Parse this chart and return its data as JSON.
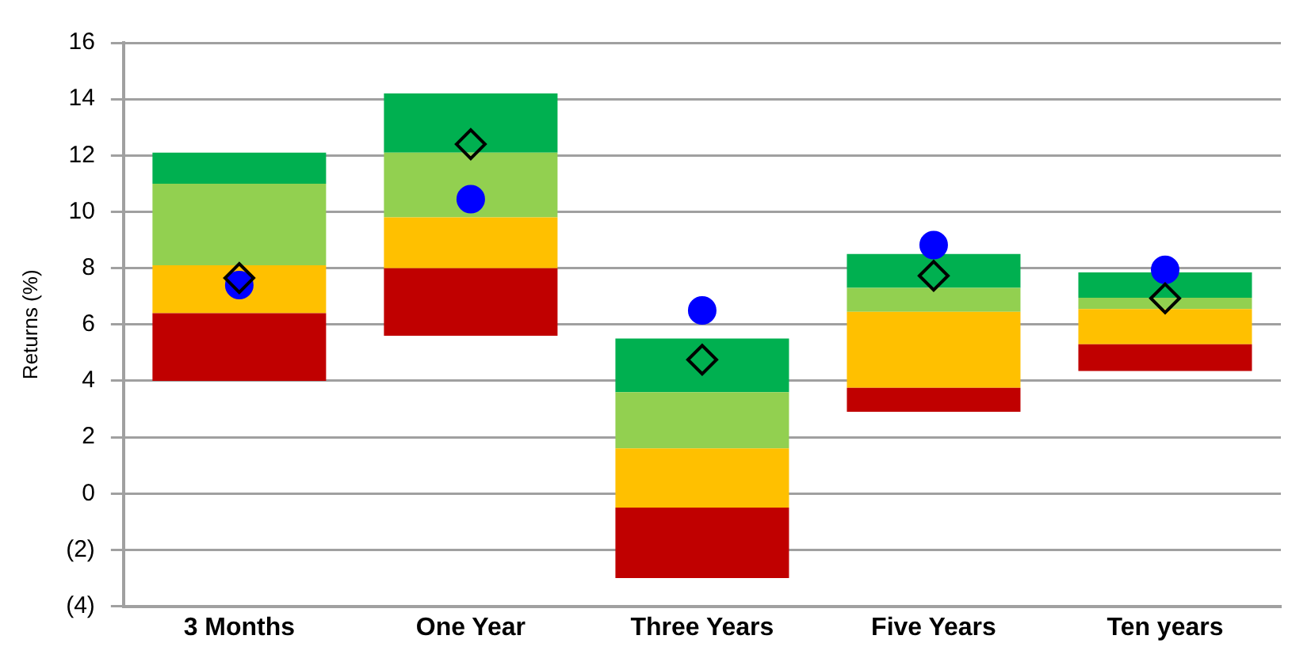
{
  "chart_data": {
    "type": "bar",
    "ylabel": "Returns (%)",
    "categories": [
      "3 Months",
      "One Year",
      "Three Years",
      "Five Years",
      "Ten years"
    ],
    "series": [
      {
        "color": "#c00000",
        "base": [
          4.0,
          5.6,
          -3.0,
          2.9,
          4.35
        ],
        "values": [
          2.4,
          2.4,
          2.5,
          0.85,
          0.95
        ]
      },
      {
        "color": "#ffc000",
        "base": [
          6.4,
          8.0,
          -0.5,
          3.75,
          5.3
        ],
        "values": [
          1.7,
          1.8,
          2.1,
          2.7,
          1.25
        ]
      },
      {
        "color": "#92d050",
        "base": [
          8.1,
          9.8,
          1.6,
          6.45,
          6.55
        ],
        "values": [
          2.9,
          2.3,
          2.0,
          0.85,
          0.4
        ]
      },
      {
        "color": "#00b050",
        "base": [
          11.0,
          12.1,
          3.6,
          7.3,
          6.95
        ],
        "values": [
          1.1,
          2.1,
          1.9,
          1.2,
          0.9
        ]
      },
      {
        "type": "scatter",
        "marker": "circle",
        "color": "#0000ff",
        "x": [
          "3 Months",
          "One Year",
          "Three Years",
          "Five Years",
          "Ten years"
        ],
        "values": [
          7.4,
          10.45,
          6.5,
          8.82,
          7.94
        ]
      },
      {
        "type": "scatter",
        "marker": "diamond",
        "color": "#000000",
        "x": [
          "3 Months",
          "One Year",
          "Three Years",
          "Five Years",
          "Ten years"
        ],
        "values": [
          7.65,
          12.4,
          4.75,
          7.73,
          6.93
        ]
      }
    ],
    "ylim": [
      -4,
      16
    ],
    "yticks": [
      {
        "value": -4,
        "label": "(4)"
      },
      {
        "value": -2,
        "label": "(2)"
      },
      0,
      2,
      4,
      6,
      8,
      10,
      12,
      14,
      16
    ],
    "grid": "y",
    "legend": false
  }
}
